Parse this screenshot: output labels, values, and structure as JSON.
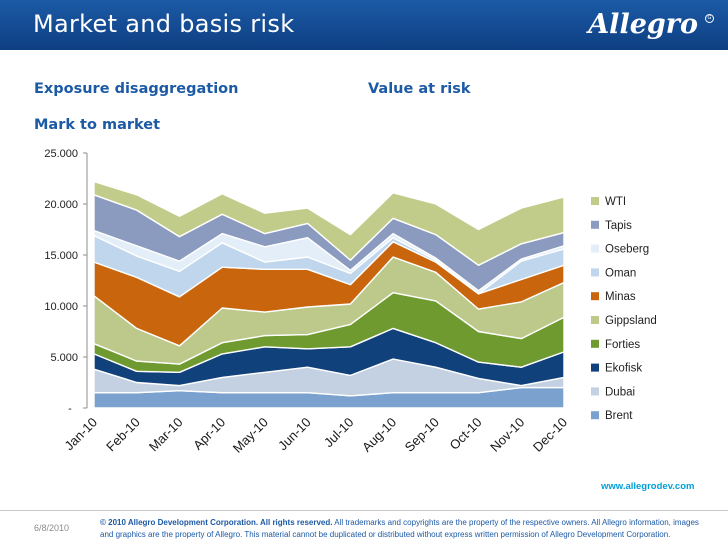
{
  "header": {
    "title": "Market and basis risk",
    "logo_text": "Allegro",
    "logo_mark": "G",
    "bg_color": "#1c5aa6"
  },
  "labels": {
    "exposure": "Exposure disaggregation",
    "var": "Value at risk",
    "mtm": "Mark to market"
  },
  "chart_data": {
    "type": "area",
    "stacked": true,
    "categories": [
      "Jan-10",
      "Feb-10",
      "Mar-10",
      "Apr-10",
      "May-10",
      "Jun-10",
      "Jul-10",
      "Aug-10",
      "Sep-10",
      "Oct-10",
      "Nov-10",
      "Dec-10"
    ],
    "y_ticks": [
      "-",
      "5.000",
      "10.000",
      "15.000",
      "20.000",
      "25.000"
    ],
    "ylim": [
      0,
      25000
    ],
    "legend_position": "right",
    "grid": false,
    "series": [
      {
        "name": "Brent",
        "color": "#7ba1cf",
        "values": [
          1500,
          1500,
          1700,
          1500,
          1500,
          1500,
          1200,
          1500,
          1500,
          1500,
          2000,
          2000
        ]
      },
      {
        "name": "Dubai",
        "color": "#c3d1e3",
        "values": [
          2300,
          1000,
          500,
          1500,
          2000,
          2500,
          2000,
          3300,
          2500,
          1400,
          200,
          1000
        ]
      },
      {
        "name": "Ekofisk",
        "color": "#10417b",
        "values": [
          1500,
          1100,
          1300,
          2300,
          2500,
          1800,
          2800,
          3000,
          2400,
          1600,
          1800,
          2500
        ]
      },
      {
        "name": "Forties",
        "color": "#6e9a2f",
        "values": [
          1000,
          1000,
          800,
          1100,
          1100,
          1400,
          2200,
          3500,
          4100,
          3000,
          2800,
          3400
        ]
      },
      {
        "name": "Gippsland",
        "color": "#bcc98a",
        "values": [
          4700,
          3200,
          1800,
          3400,
          2300,
          2700,
          2000,
          3500,
          2800,
          2200,
          3600,
          3400
        ]
      },
      {
        "name": "Minas",
        "color": "#c9650c",
        "values": [
          3300,
          5000,
          4800,
          4000,
          4200,
          3700,
          1900,
          1500,
          1000,
          1500,
          2200,
          1700
        ]
      },
      {
        "name": "Oman",
        "color": "#bfd6ec",
        "values": [
          2600,
          2100,
          2500,
          2400,
          700,
          1200,
          1100,
          400,
          200,
          0,
          1800,
          1600
        ]
      },
      {
        "name": "Oseberg",
        "color": "#e3eef8",
        "values": [
          500,
          1000,
          1000,
          900,
          1500,
          1900,
          300,
          400,
          200,
          300,
          200,
          300
        ]
      },
      {
        "name": "Tapis",
        "color": "#8b9bbf",
        "values": [
          3500,
          3500,
          2400,
          1900,
          1300,
          1400,
          1000,
          1500,
          2300,
          2500,
          1500,
          1300
        ]
      },
      {
        "name": "WTI",
        "color": "#c2cc8a",
        "values": [
          1300,
          1500,
          2000,
          2000,
          2000,
          1500,
          2500,
          2500,
          3000,
          3500,
          3500,
          3500
        ]
      }
    ]
  },
  "footer": {
    "url": "www.allegrodev.com",
    "date": "6/8/2010",
    "copyright_bold": "© 2010 Allegro Development Corporation. All rights reserved.",
    "copyright_rest": "All trademarks and copyrights are the property of the respective owners. All Allegro information, images and graphics are the property of Allegro. This material cannot be duplicated or distributed without express written permission of Allegro Development Corporation."
  }
}
